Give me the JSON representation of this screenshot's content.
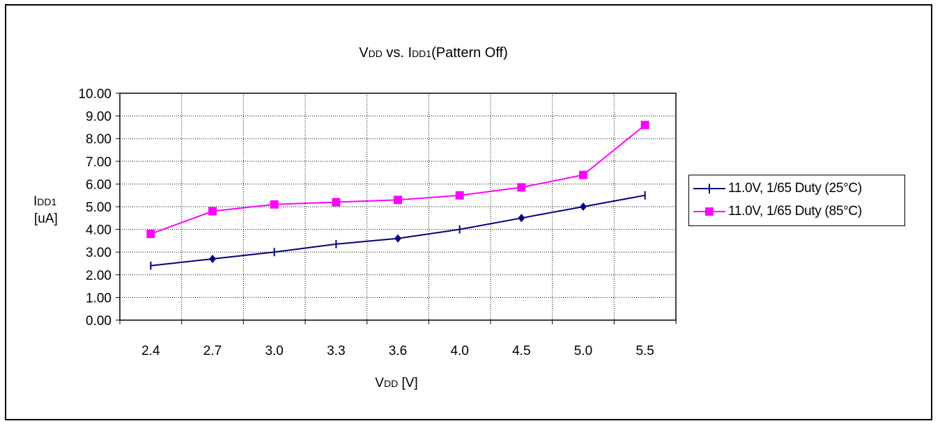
{
  "chart_data": {
    "type": "line",
    "title": {
      "main_v": "V",
      "main_v_sub": "DD",
      "mid": " vs. I",
      "mid_sub": "DD1",
      "tail": "(Pattern Off)"
    },
    "xlabel": {
      "v": "V",
      "v_sub": "DD",
      "unit": " [V]"
    },
    "ylabel": {
      "i": "I",
      "i_sub": "DD1",
      "unit": "[uA]"
    },
    "categories": [
      "2.4",
      "2.7",
      "3.0",
      "3.3",
      "3.6",
      "4.0",
      "4.5",
      "5.0",
      "5.5"
    ],
    "y_ticks": [
      "0.00",
      "1.00",
      "2.00",
      "3.00",
      "4.00",
      "5.00",
      "6.00",
      "7.00",
      "8.00",
      "9.00",
      "10.00"
    ],
    "ylim": [
      0,
      10
    ],
    "grid": true,
    "legend_position": "right",
    "series": [
      {
        "name": "11.0V, 1/65 Duty (25°C)",
        "color": "#000080",
        "values": [
          2.4,
          2.7,
          3.0,
          3.35,
          3.6,
          4.0,
          4.5,
          5.0,
          5.5
        ]
      },
      {
        "name": "11.0V, 1/65 Duty (85°C)",
        "color": "#ff00ff",
        "values": [
          3.8,
          4.8,
          5.1,
          5.2,
          5.3,
          5.5,
          5.85,
          6.4,
          8.6
        ]
      }
    ]
  }
}
